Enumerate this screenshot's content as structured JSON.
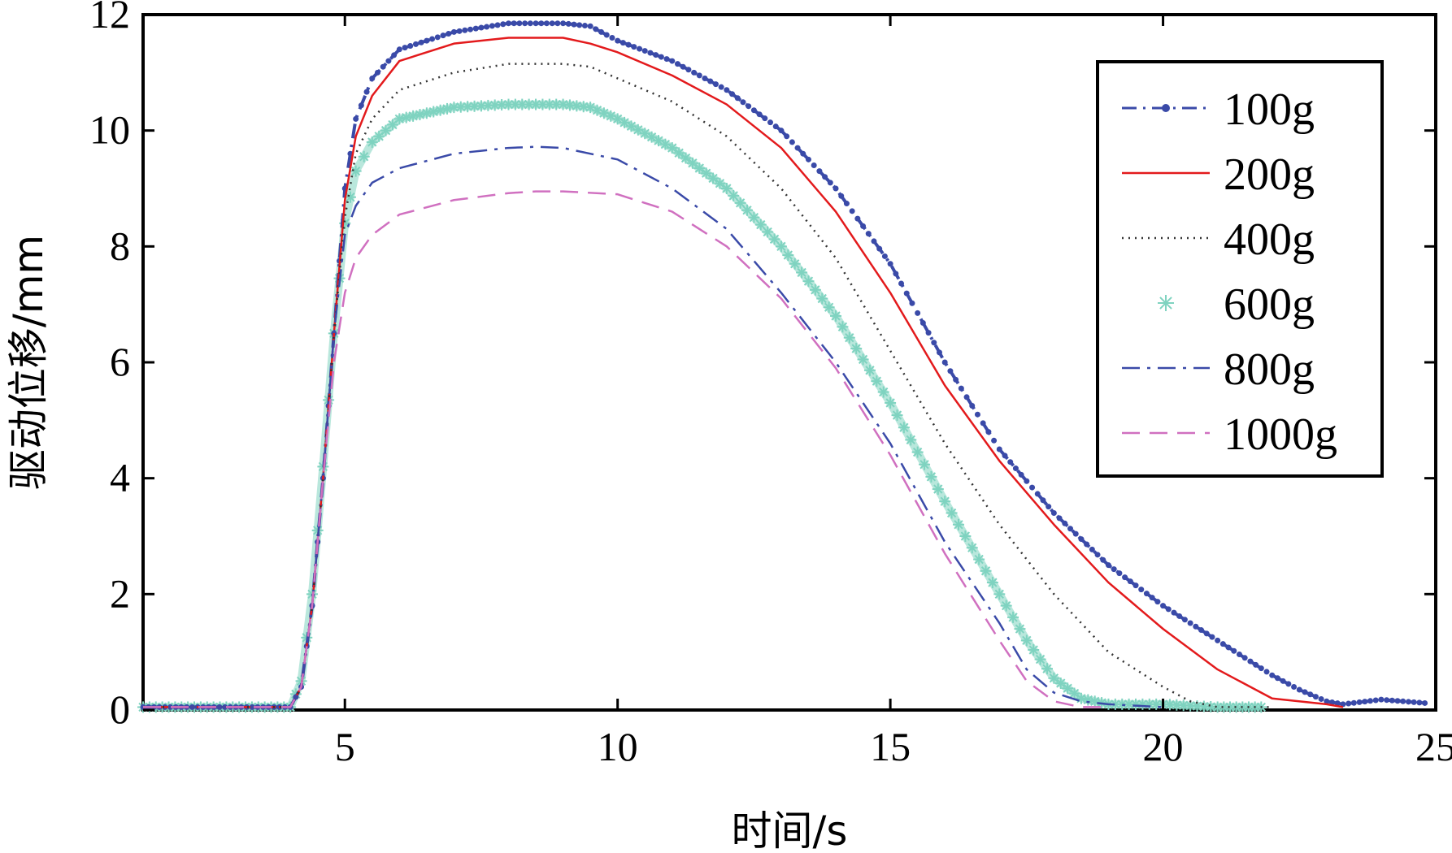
{
  "chart_data": {
    "type": "line",
    "title": "",
    "xlabel": "时间/s",
    "ylabel": "驱动位移/mm",
    "xlim": [
      1.3,
      25
    ],
    "ylim": [
      0,
      12
    ],
    "x_ticks": [
      5,
      10,
      15,
      20,
      25
    ],
    "y_ticks": [
      0,
      2,
      4,
      6,
      8,
      10,
      12
    ],
    "grid": false,
    "legend": {
      "position": "top-right"
    },
    "series": [
      {
        "name": "100g",
        "color": "#3a4aa8",
        "style": "dot-dash-marker",
        "x": [
          1.3,
          4.0,
          4.2,
          4.4,
          4.6,
          4.8,
          5.0,
          5.2,
          5.5,
          6.0,
          7.0,
          8.0,
          9.0,
          9.5,
          10.0,
          11.0,
          12.0,
          13.0,
          14.0,
          15.0,
          16.0,
          17.0,
          18.0,
          19.0,
          20.0,
          21.0,
          22.0,
          22.5,
          23.0,
          23.3,
          24.0,
          24.8
        ],
        "y": [
          0.05,
          0.05,
          0.4,
          1.8,
          4.0,
          6.5,
          9.0,
          10.2,
          10.9,
          11.4,
          11.7,
          11.85,
          11.85,
          11.8,
          11.55,
          11.2,
          10.7,
          10.0,
          9.0,
          7.7,
          6.0,
          4.5,
          3.4,
          2.5,
          1.8,
          1.2,
          0.6,
          0.35,
          0.15,
          0.1,
          0.18,
          0.12
        ]
      },
      {
        "name": "200g",
        "color": "#e31a1c",
        "style": "solid",
        "x": [
          1.3,
          4.0,
          4.2,
          4.4,
          4.6,
          4.8,
          5.0,
          5.2,
          5.5,
          6.0,
          7.0,
          8.0,
          9.0,
          9.5,
          10.0,
          11.0,
          12.0,
          13.0,
          14.0,
          15.0,
          16.0,
          17.0,
          18.0,
          19.0,
          20.0,
          21.0,
          22.0,
          23.0,
          23.3
        ],
        "y": [
          0.05,
          0.05,
          0.4,
          1.8,
          4.0,
          6.5,
          8.8,
          9.9,
          10.6,
          11.2,
          11.5,
          11.6,
          11.6,
          11.5,
          11.35,
          10.95,
          10.45,
          9.7,
          8.6,
          7.2,
          5.6,
          4.3,
          3.2,
          2.2,
          1.4,
          0.7,
          0.2,
          0.1,
          0.05
        ]
      },
      {
        "name": "400g",
        "color": "#333333",
        "style": "dotted",
        "x": [
          1.3,
          4.0,
          4.2,
          4.4,
          4.6,
          4.8,
          5.0,
          5.2,
          5.5,
          6.0,
          7.0,
          8.0,
          9.0,
          9.5,
          10.0,
          11.0,
          12.0,
          13.0,
          14.0,
          15.0,
          16.0,
          17.0,
          18.0,
          19.0,
          20.0,
          20.5,
          21.0,
          22.0
        ],
        "y": [
          0.05,
          0.05,
          0.4,
          1.8,
          4.0,
          6.5,
          8.5,
          9.6,
          10.2,
          10.7,
          11.0,
          11.15,
          11.15,
          11.1,
          10.9,
          10.5,
          9.9,
          9.0,
          7.8,
          6.2,
          4.6,
          3.2,
          2.0,
          1.0,
          0.4,
          0.15,
          0.05,
          0.05
        ]
      },
      {
        "name": "600g",
        "color": "#7fd3c0",
        "style": "star-marker",
        "x": [
          1.3,
          4.0,
          4.2,
          4.4,
          4.6,
          4.8,
          5.0,
          5.2,
          5.5,
          6.0,
          7.0,
          8.0,
          9.0,
          9.5,
          10.0,
          11.0,
          12.0,
          13.0,
          14.0,
          15.0,
          16.0,
          17.0,
          17.5,
          18.0,
          18.5,
          19.0,
          20.0,
          21.0,
          21.8
        ],
        "y": [
          0.05,
          0.05,
          0.5,
          2.0,
          4.2,
          6.5,
          8.4,
          9.3,
          9.8,
          10.2,
          10.4,
          10.45,
          10.45,
          10.4,
          10.2,
          9.7,
          9.0,
          8.0,
          6.8,
          5.3,
          3.6,
          2.0,
          1.2,
          0.55,
          0.2,
          0.1,
          0.1,
          0.05,
          0.05
        ]
      },
      {
        "name": "800g",
        "color": "#3a4aa8",
        "style": "dash-dot",
        "x": [
          1.3,
          4.0,
          4.2,
          4.4,
          4.6,
          4.8,
          5.0,
          5.2,
          5.5,
          6.0,
          7.0,
          8.0,
          8.5,
          9.0,
          10.0,
          11.0,
          12.0,
          13.0,
          14.0,
          15.0,
          16.0,
          17.0,
          17.5,
          18.0,
          18.5,
          19.0,
          20.0
        ],
        "y": [
          0.05,
          0.05,
          0.4,
          1.8,
          4.0,
          6.5,
          8.2,
          8.7,
          9.1,
          9.35,
          9.6,
          9.7,
          9.72,
          9.7,
          9.5,
          9.0,
          8.3,
          7.2,
          6.0,
          4.6,
          2.9,
          1.5,
          0.7,
          0.3,
          0.15,
          0.1,
          0.05
        ]
      },
      {
        "name": "1000g",
        "color": "#d070c0",
        "style": "dashed",
        "x": [
          1.3,
          4.0,
          4.2,
          4.4,
          4.6,
          4.8,
          5.0,
          5.2,
          5.5,
          6.0,
          7.0,
          8.0,
          8.5,
          9.0,
          10.0,
          11.0,
          12.0,
          13.0,
          14.0,
          15.0,
          16.0,
          17.0,
          17.5,
          18.0,
          18.5,
          19.0
        ],
        "y": [
          0.05,
          0.05,
          0.4,
          1.8,
          4.0,
          6.0,
          7.2,
          7.8,
          8.2,
          8.55,
          8.8,
          8.92,
          8.95,
          8.95,
          8.9,
          8.6,
          8.0,
          7.1,
          5.9,
          4.4,
          2.7,
          1.2,
          0.5,
          0.15,
          0.05,
          0.05
        ]
      }
    ]
  }
}
